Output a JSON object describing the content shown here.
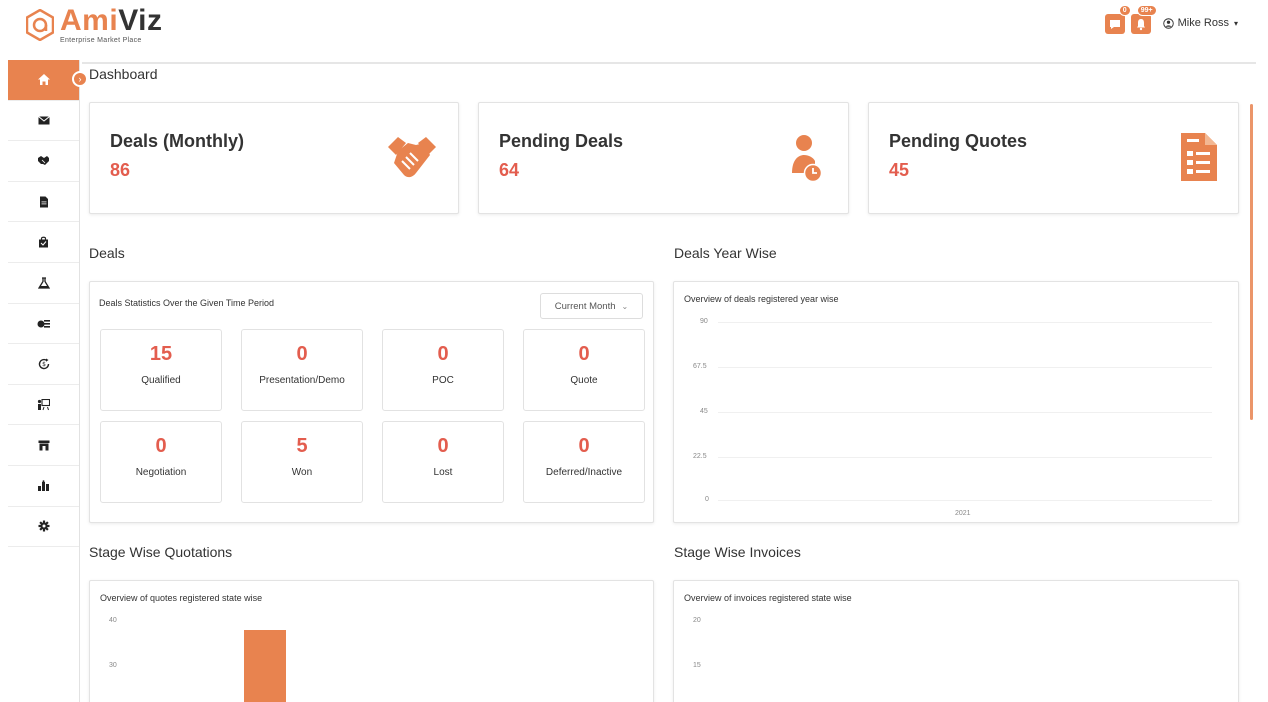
{
  "header": {
    "logo_prefix": "Ami",
    "logo_suffix": "Viz",
    "logo_tagline": "Enterprise Market Place",
    "chat_badge": "0",
    "notification_badge": "99+",
    "user_name": "Mike Ross",
    "accent_color": "#e8834f"
  },
  "sidebar": {
    "items": [
      {
        "icon": "home-icon"
      },
      {
        "icon": "envelope-icon"
      },
      {
        "icon": "handshake-icon"
      },
      {
        "icon": "document-icon"
      },
      {
        "icon": "shopping-bag-icon"
      },
      {
        "icon": "flask-icon"
      },
      {
        "icon": "coins-icon"
      },
      {
        "icon": "renewal-icon"
      },
      {
        "icon": "presentation-icon"
      },
      {
        "icon": "store-icon"
      },
      {
        "icon": "organization-icon"
      },
      {
        "icon": "gear-icon"
      }
    ]
  },
  "page": {
    "title": "Dashboard"
  },
  "kpis": [
    {
      "title": "Deals (Monthly)",
      "value": "86",
      "icon": "handshake-icon"
    },
    {
      "title": "Pending Deals",
      "value": "64",
      "icon": "user-clock-icon"
    },
    {
      "title": "Pending Quotes",
      "value": "45",
      "icon": "invoice-icon"
    }
  ],
  "deals": {
    "section_title": "Deals",
    "caption": "Deals Statistics Over the Given Time Period",
    "period_select": "Current Month",
    "stats": [
      {
        "value": "15",
        "label": "Qualified"
      },
      {
        "value": "0",
        "label": "Presentation/Demo"
      },
      {
        "value": "0",
        "label": "POC"
      },
      {
        "value": "0",
        "label": "Quote"
      },
      {
        "value": "0",
        "label": "Negotiation"
      },
      {
        "value": "5",
        "label": "Won"
      },
      {
        "value": "0",
        "label": "Lost"
      },
      {
        "value": "0",
        "label": "Deferred/Inactive"
      }
    ]
  },
  "year_wise": {
    "section_title": "Deals Year Wise",
    "caption": "Overview of deals registered year wise",
    "y_ticks": [
      "90",
      "67.5",
      "45",
      "22.5",
      "0"
    ],
    "x_labels": [
      "2021"
    ]
  },
  "quotations": {
    "section_title": "Stage Wise Quotations",
    "caption": "Overview of quotes registered state wise",
    "y_ticks": [
      "40",
      "30"
    ]
  },
  "invoices": {
    "section_title": "Stage Wise Invoices",
    "caption": "Overview of invoices registered state wise",
    "y_ticks": [
      "20",
      "15"
    ]
  },
  "chart_data": [
    {
      "type": "bar",
      "caption": "Overview of deals registered year wise",
      "categories": [
        "2021"
      ],
      "values": [
        0
      ],
      "ylim": [
        0,
        90
      ],
      "grid": true
    },
    {
      "type": "bar",
      "caption": "Overview of quotes registered state wise",
      "values": [
        38
      ],
      "ylim": [
        20,
        40
      ],
      "color": "#e8834f",
      "grid": false
    },
    {
      "type": "bar",
      "caption": "Overview of invoices registered state wise",
      "values": [],
      "ylim": [
        10,
        20
      ],
      "grid": false
    }
  ]
}
